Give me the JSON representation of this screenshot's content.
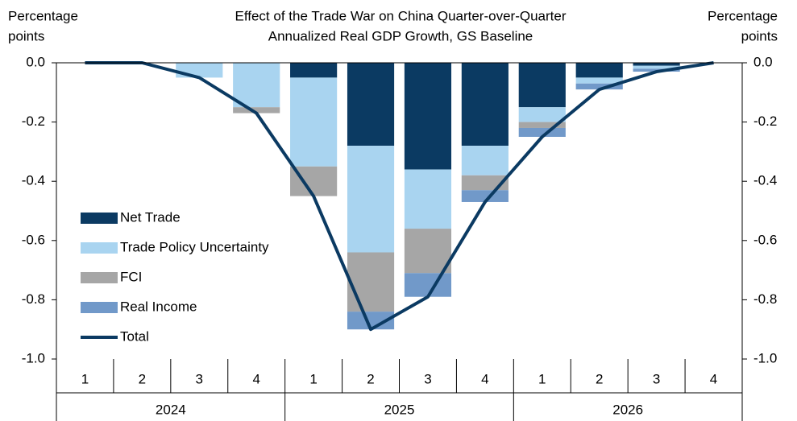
{
  "chart_data": {
    "type": "stacked-bar-line",
    "title": [
      "Effect of the Trade War on China Quarter-over-Quarter",
      "Annualized Real GDP Growth, GS Baseline"
    ],
    "y_label": [
      "Percentage",
      "points"
    ],
    "y2_label": [
      "Percentage",
      "points"
    ],
    "categories": [
      "1",
      "2",
      "3",
      "4",
      "1",
      "2",
      "3",
      "4",
      "1",
      "2",
      "3",
      "4"
    ],
    "groups": [
      "2024",
      "2025",
      "2026"
    ],
    "series": [
      {
        "name": "Net Trade",
        "color": "#0b3a62",
        "values": [
          0,
          0,
          0,
          0,
          -0.05,
          -0.28,
          -0.36,
          -0.28,
          -0.15,
          -0.05,
          -0.01,
          0
        ]
      },
      {
        "name": "Trade Policy Uncertainty",
        "color": "#a9d4f0",
        "values": [
          0,
          0,
          -0.05,
          -0.15,
          -0.3,
          -0.36,
          -0.2,
          -0.1,
          -0.05,
          -0.02,
          -0.01,
          0
        ]
      },
      {
        "name": "FCI",
        "color": "#a6a6a6",
        "values": [
          0,
          0,
          0,
          -0.02,
          -0.1,
          -0.2,
          -0.15,
          -0.05,
          -0.02,
          0,
          0,
          0
        ]
      },
      {
        "name": "Real Income",
        "color": "#7199c9",
        "values": [
          0,
          0,
          0,
          0,
          0,
          -0.06,
          -0.08,
          -0.04,
          -0.03,
          -0.02,
          -0.01,
          0
        ]
      },
      {
        "name": "Total",
        "color": "#0b3a62",
        "style": "line",
        "values": [
          0,
          0,
          -0.05,
          -0.17,
          -0.45,
          -0.9,
          -0.79,
          -0.47,
          -0.25,
          -0.09,
          -0.03,
          0
        ]
      }
    ],
    "ylim": [
      -1.0,
      0.0
    ],
    "yticks": [
      {
        "value": 0,
        "label": "0.0"
      },
      {
        "value": -0.2,
        "label": "-0.2"
      },
      {
        "value": -0.4,
        "label": "-0.4"
      },
      {
        "value": -0.6,
        "label": "-0.6"
      },
      {
        "value": -0.8,
        "label": "-0.8"
      },
      {
        "value": -1.0,
        "label": "-1.0"
      }
    ],
    "y2lim": [
      -1.0,
      0.0
    ],
    "y2ticks": [
      {
        "value": 0,
        "label": "0.0"
      },
      {
        "value": -0.2,
        "label": "-0.2"
      },
      {
        "value": -0.4,
        "label": "-0.4"
      },
      {
        "value": -0.6,
        "label": "-0.6"
      },
      {
        "value": -0.8,
        "label": "-0.8"
      },
      {
        "value": -1.0,
        "label": "-1.0"
      }
    ],
    "legend": "left"
  }
}
